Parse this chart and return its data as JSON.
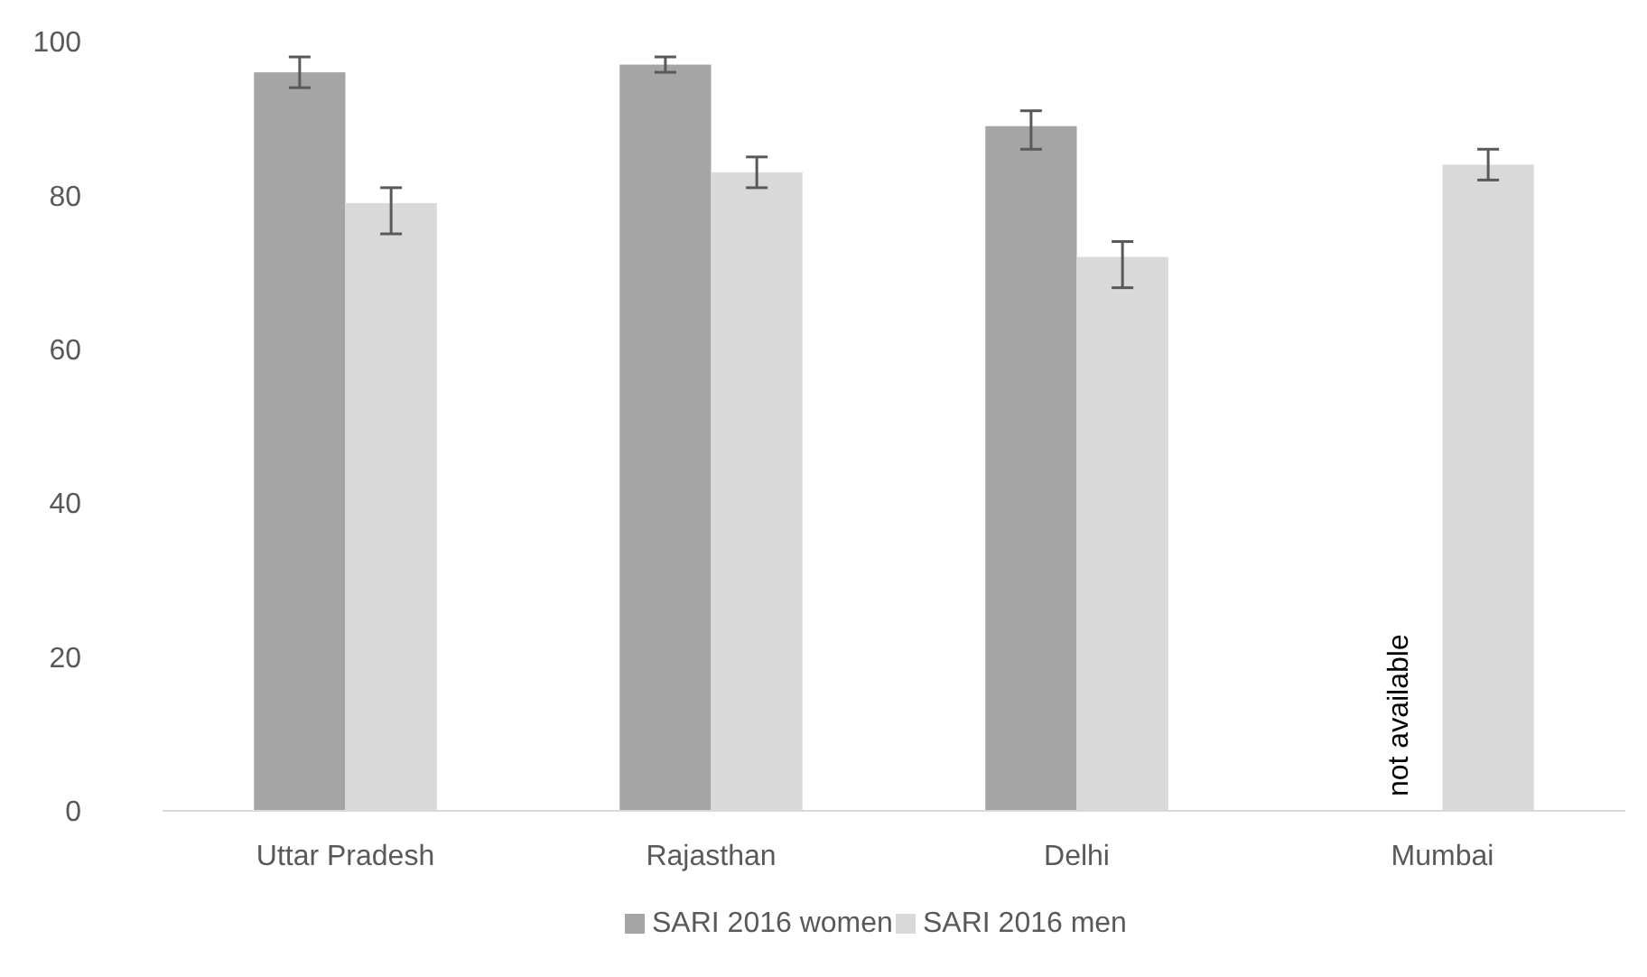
{
  "chart_data": {
    "type": "bar",
    "categories": [
      "Uttar Pradesh",
      "Rajasthan",
      "Delhi",
      "Mumbai"
    ],
    "series": [
      {
        "name": "SARI 2016 women",
        "color": "#a5a5a5",
        "values": [
          96,
          97,
          89,
          null
        ],
        "errors": [
          [
            94,
            98
          ],
          [
            96,
            98
          ],
          [
            86,
            91
          ],
          null
        ]
      },
      {
        "name": "SARI 2016 men",
        "color": "#d9d9d9",
        "values": [
          79,
          83,
          72,
          84
        ],
        "errors": [
          [
            75,
            81
          ],
          [
            81,
            85
          ],
          [
            68,
            74
          ],
          [
            82,
            86
          ]
        ]
      }
    ],
    "ylim": [
      0,
      100
    ],
    "yticks": [
      0,
      20,
      40,
      60,
      80,
      100
    ],
    "grid": false,
    "legend": "bottom",
    "annotations": [
      {
        "text": "not available",
        "x": "Mumbai"
      }
    ]
  }
}
